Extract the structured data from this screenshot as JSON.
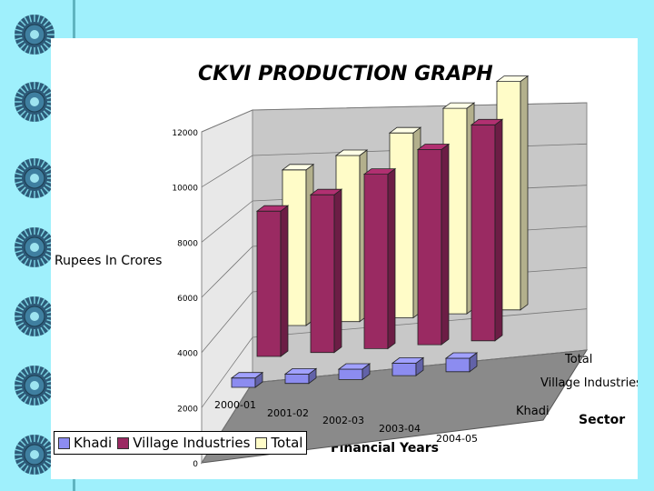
{
  "chart_data": {
    "type": "bar",
    "title": "CKVI PRODUCTION GRAPH",
    "xlabel": "Financial Years",
    "ylabel": "Rupees In Crores",
    "zlabel": "Sector",
    "categories": [
      "2000-01",
      "2001-02",
      "2002-03",
      "2003-04",
      "2004-05"
    ],
    "series": [
      {
        "name": "Khadi",
        "values": [
          450,
          450,
          500,
          600,
          650
        ]
      },
      {
        "name": "Village Industries",
        "values": [
          7000,
          7600,
          8400,
          9400,
          10400
        ]
      },
      {
        "name": "Total",
        "values": [
          7500,
          8000,
          8900,
          9900,
          11000
        ]
      }
    ],
    "ylim": [
      0,
      12000
    ],
    "yticks": [
      "0",
      "2000",
      "4000",
      "6000",
      "8000",
      "10000",
      "12000"
    ],
    "grid": true,
    "legend_position": "bottom-left",
    "colors": {
      "Khadi": "#8c8cf0",
      "Village Industries": "#9a2a62",
      "Total": "#fffcc8",
      "wall": "#c8c8c8",
      "floor": "#8a8a8a",
      "background": "#9ff0fc"
    }
  }
}
